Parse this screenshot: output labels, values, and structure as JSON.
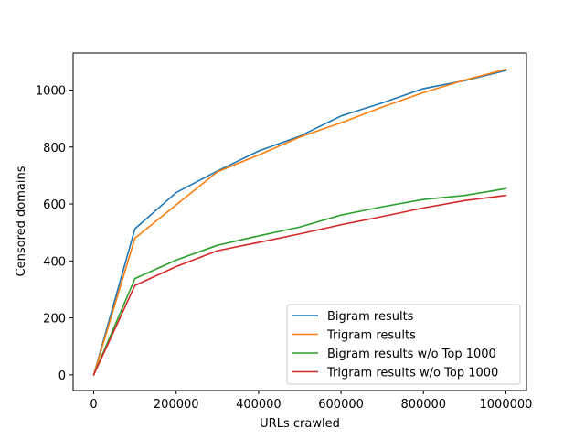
{
  "chart_data": {
    "type": "line",
    "title": "",
    "xlabel": "URLs crawled",
    "ylabel": "Censored domains",
    "xlim": [
      -50000,
      1050000
    ],
    "ylim": [
      -55,
      1130
    ],
    "xticks": [
      0,
      200000,
      400000,
      600000,
      800000,
      1000000
    ],
    "xtick_labels": [
      "0",
      "200000",
      "400000",
      "600000",
      "800000",
      "1000000"
    ],
    "yticks": [
      0,
      200,
      400,
      600,
      800,
      1000
    ],
    "ytick_labels": [
      "0",
      "200",
      "400",
      "600",
      "800",
      "1000"
    ],
    "grid": false,
    "legend_position": "lower-right",
    "x": [
      0,
      100000,
      200000,
      300000,
      400000,
      500000,
      600000,
      700000,
      800000,
      900000,
      1000000
    ],
    "series": [
      {
        "name": "Bigram results",
        "color": "#1f77b4",
        "values": [
          0,
          513,
          640,
          716,
          786,
          838,
          909,
          955,
          1005,
          1033,
          1069
        ]
      },
      {
        "name": "Trigram results",
        "color": "#ff7f0e",
        "values": [
          0,
          480,
          597,
          713,
          772,
          835,
          885,
          940,
          991,
          1035,
          1073
        ]
      },
      {
        "name": "Bigram results w/o Top 1000",
        "color": "#2ca02c",
        "values": [
          0,
          338,
          403,
          455,
          488,
          519,
          561,
          590,
          616,
          630,
          654
        ]
      },
      {
        "name": "Trigram results w/o Top 1000",
        "color": "#d62728",
        "values": [
          0,
          314,
          380,
          436,
          465,
          495,
          527,
          556,
          586,
          612,
          630
        ]
      }
    ]
  }
}
